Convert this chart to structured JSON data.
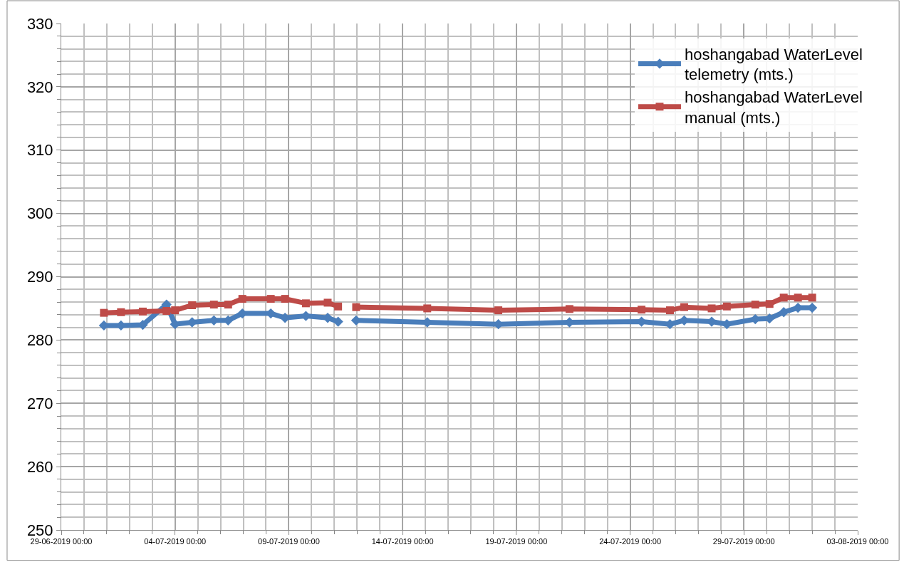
{
  "chart_data": {
    "type": "line",
    "x": [
      "2019-06-30T21:00",
      "2019-07-01T15:00",
      "2019-07-02T14:00",
      "2019-07-03T15:00",
      "2019-07-04T00:00",
      "2019-07-04T18:00",
      "2019-07-05T17:00",
      "2019-07-06T08:00",
      "2019-07-06T23:00",
      "2019-07-08T05:00",
      "2019-07-08T20:00",
      "2019-07-09T18:00",
      "2019-07-10T17:00",
      "2019-07-11T04:00",
      "2019-07-11T12:00",
      "2019-07-11T23:00",
      "2019-07-15T02:00",
      "2019-07-18T05:00",
      "2019-07-21T08:00",
      "2019-07-24T12:00",
      "2019-07-25T18:00",
      "2019-07-26T09:00",
      "2019-07-27T14:00",
      "2019-07-28T06:00",
      "2019-07-29T12:00",
      "2019-07-30T03:00",
      "2019-07-30T18:00",
      "2019-07-31T09:00",
      "2019-08-01T00:00"
    ],
    "series": [
      {
        "name": "hoshangabad WaterLevel telemetry (mts.)",
        "color": "#4a7ebb",
        "marker": "diamond",
        "values": [
          282.3,
          282.3,
          282.4,
          285.6,
          282.5,
          282.8,
          283.1,
          283.1,
          284.2,
          284.2,
          283.5,
          283.8,
          283.5,
          282.9,
          null,
          283.1,
          282.8,
          282.5,
          282.8,
          282.9,
          282.5,
          283.1,
          282.9,
          282.5,
          283.3,
          283.4,
          284.4,
          285.1,
          285.1
        ]
      },
      {
        "name": "hoshangabad WaterLevel manual (mts.)",
        "color": "#be4b48",
        "marker": "square",
        "values": [
          284.3,
          284.4,
          284.5,
          284.6,
          284.7,
          285.5,
          285.6,
          285.6,
          286.5,
          286.5,
          286.5,
          285.8,
          285.9,
          285.3,
          null,
          285.2,
          285.0,
          284.7,
          284.9,
          284.8,
          284.7,
          285.2,
          285.0,
          285.3,
          285.6,
          285.7,
          286.7,
          286.7,
          286.7
        ]
      }
    ],
    "xlim": [
      "2019-06-29",
      "2019-08-03"
    ],
    "xticks": [
      {
        "value": "2019-06-29",
        "label": "29-06-2019 00:00"
      },
      {
        "value": "2019-07-04",
        "label": "04-07-2019 00:00"
      },
      {
        "value": "2019-07-09",
        "label": "09-07-2019 00:00"
      },
      {
        "value": "2019-07-14",
        "label": "14-07-2019 00:00"
      },
      {
        "value": "2019-07-19",
        "label": "19-07-2019 00:00"
      },
      {
        "value": "2019-07-24",
        "label": "24-07-2019 00:00"
      },
      {
        "value": "2019-07-29",
        "label": "29-07-2019 00:00"
      },
      {
        "value": "2019-08-03",
        "label": "03-08-2019 00:00"
      }
    ],
    "ylim": [
      250,
      330
    ],
    "yticks": [
      250,
      260,
      270,
      280,
      290,
      300,
      310,
      320,
      330
    ],
    "grid": true,
    "legend": "top right",
    "line_style": "solid"
  }
}
